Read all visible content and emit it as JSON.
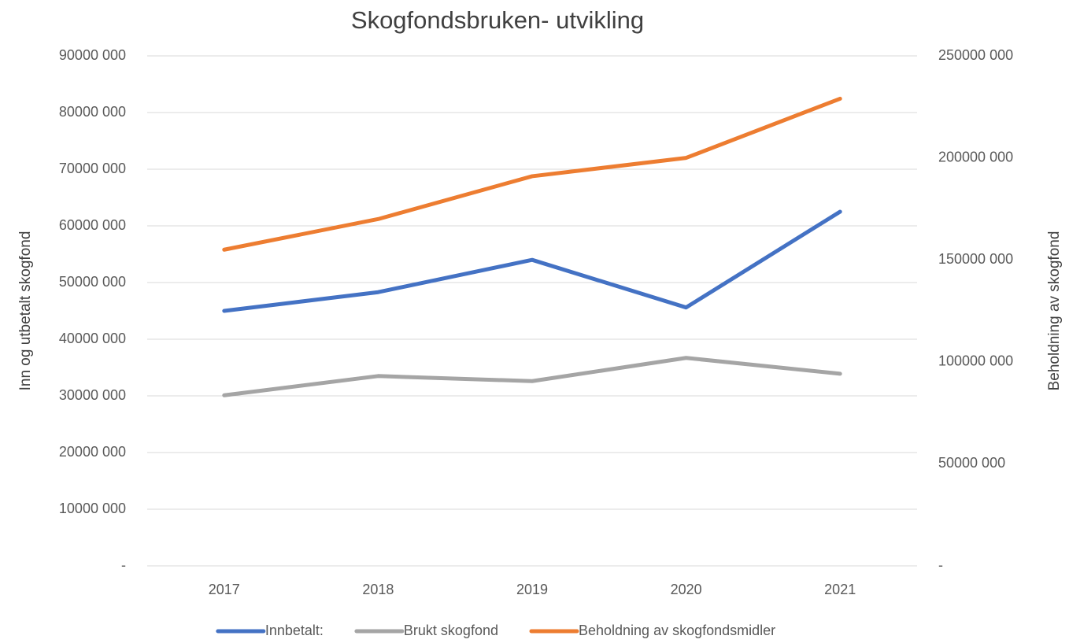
{
  "chart_data": {
    "type": "line",
    "title": "Skogfondsbruken- utvikling",
    "y_label": "Inn og utbetalt skogfond",
    "y2_label": "Beholdning av skogfond",
    "categories": [
      "2017",
      "2018",
      "2019",
      "2020",
      "2021"
    ],
    "series": [
      {
        "name": "Innbetalt:",
        "color": "#4472c4",
        "values": [
          45000000,
          48300000,
          54000000,
          45600000,
          62500000
        ]
      },
      {
        "name": "Brukt skogfond",
        "color": "#a5a5a5",
        "values": [
          30100000,
          33500000,
          32600000,
          36700000,
          33900000
        ]
      },
      {
        "name": "Beholdning av skogfondsmidler",
        "color": "#ed7d31",
        "axis": "y2",
        "values": [
          155000000,
          170000000,
          191000000,
          200000000,
          229000000
        ]
      }
    ],
    "ylim": [
      0,
      90000000
    ],
    "yticks": [
      {
        "value": 0,
        "label": "-"
      },
      {
        "value": 10000000,
        "label": "10000 000"
      },
      {
        "value": 20000000,
        "label": "20000 000"
      },
      {
        "value": 30000000,
        "label": "30000 000"
      },
      {
        "value": 40000000,
        "label": "40000 000"
      },
      {
        "value": 50000000,
        "label": "50000 000"
      },
      {
        "value": 60000000,
        "label": "60000 000"
      },
      {
        "value": 70000000,
        "label": "70000 000"
      },
      {
        "value": 80000000,
        "label": "80000 000"
      },
      {
        "value": 90000000,
        "label": "90000 000"
      }
    ],
    "y2lim": [
      0,
      250000000
    ],
    "y2ticks": [
      {
        "value": 0,
        "label": "-"
      },
      {
        "value": 50000000,
        "label": "50000 000"
      },
      {
        "value": 100000000,
        "label": "100000 000"
      },
      {
        "value": 150000000,
        "label": "150000 000"
      },
      {
        "value": 200000000,
        "label": "200000 000"
      },
      {
        "value": 250000000,
        "label": "250000 000"
      }
    ],
    "grid": true,
    "legend": "bottom"
  }
}
